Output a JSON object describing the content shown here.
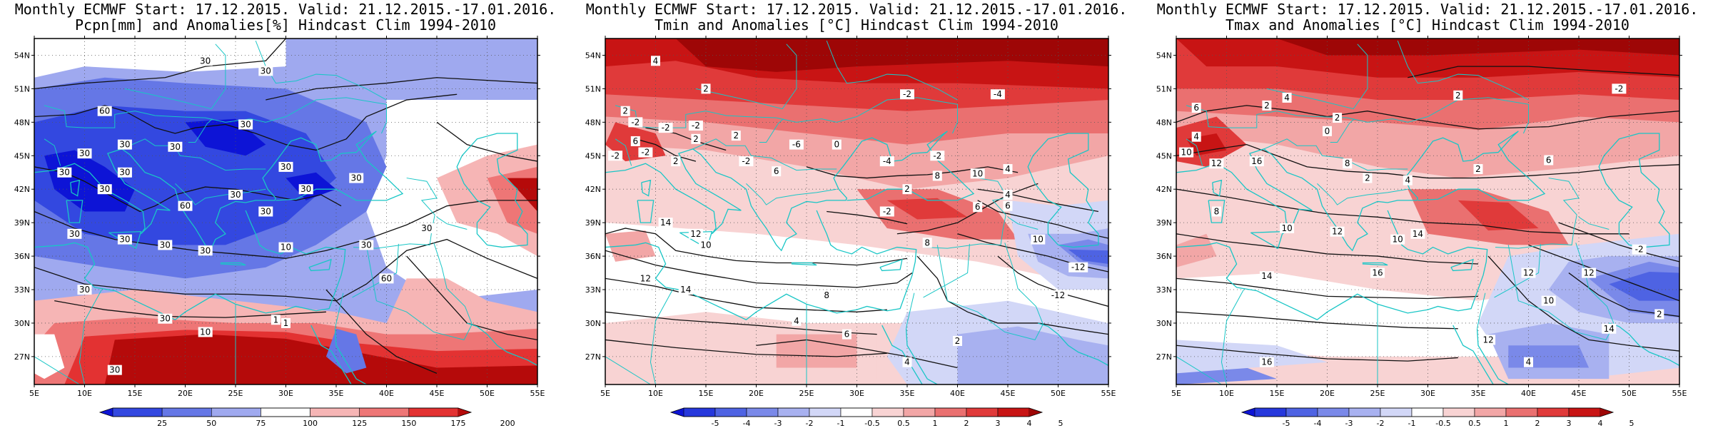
{
  "panels": [
    {
      "title_line1": "Monthly ECMWF Start: 17.12.2015. Valid: 21.12.2015.-17.01.2016.",
      "title_line2": "Pcpn[mm] and Anomalies[%] Hindcast Clim 1994-2010",
      "x_ticks": [
        "5E",
        "10E",
        "15E",
        "20E",
        "25E",
        "30E",
        "35E",
        "40E",
        "45E",
        "50E",
        "55E"
      ],
      "y_ticks": [
        "54N",
        "51N",
        "48N",
        "45N",
        "42N",
        "39N",
        "36N",
        "33N",
        "30N",
        "27N"
      ],
      "colorbar_labels": [
        "25",
        "50",
        "75",
        "100",
        "125",
        "150",
        "175",
        "200"
      ],
      "colorbar_colors": [
        "#0d14d6",
        "#3348e0",
        "#6577e6",
        "#9fa9ef",
        "#ffffff",
        "#f6b5b5",
        "#ee7676",
        "#e33232",
        "#b50a0a"
      ],
      "contour_labels": [
        "30",
        "30",
        "60",
        "30",
        "30",
        "30",
        "30",
        "30",
        "30",
        "30",
        "30",
        "30",
        "30",
        "30",
        "60",
        "30",
        "30",
        "30",
        "30",
        "30",
        "10",
        "30",
        "30",
        "60",
        "30",
        "30",
        "1",
        "1",
        "10",
        "30"
      ]
    },
    {
      "title_line1": "Monthly ECMWF Start: 17.12.2015. Valid: 21.12.2015.-17.01.2016.",
      "title_line2": "Tmin and Anomalies [°C] Hindcast Clim 1994-2010",
      "x_ticks": [
        "5E",
        "10E",
        "15E",
        "20E",
        "25E",
        "30E",
        "35E",
        "40E",
        "45E",
        "50E",
        "55E"
      ],
      "y_ticks": [
        "54N",
        "51N",
        "48N",
        "45N",
        "42N",
        "39N",
        "36N",
        "33N",
        "30N",
        "27N"
      ],
      "colorbar_labels": [
        "-5",
        "-4",
        "-3",
        "-2",
        "-1",
        "-0.5",
        "0.5",
        "1",
        "2",
        "3",
        "4",
        "5"
      ],
      "colorbar_colors": [
        "#0d14d6",
        "#2638dc",
        "#4e63e3",
        "#7a89e9",
        "#a8b1f0",
        "#d2d7f7",
        "#ffffff",
        "#f8d3d3",
        "#f2a6a6",
        "#ea7070",
        "#e03a3a",
        "#c81414",
        "#9e0606"
      ],
      "contour_labels": [
        "4",
        "2",
        "-2",
        "2",
        "-4",
        "-2",
        "-2",
        "6",
        "-2",
        "2",
        "-6",
        "-2",
        "-2",
        "2",
        "2",
        "-2",
        "0",
        "-4",
        "-2",
        "6",
        "8",
        "10",
        "4",
        "6",
        "-2",
        "2",
        "4",
        "6",
        "14",
        "12",
        "10",
        "8",
        "10",
        "-12",
        "-12",
        "14",
        "12",
        "8",
        "4",
        "6",
        "2",
        "4"
      ]
    },
    {
      "title_line1": "Monthly ECMWF Start: 17.12.2015. Valid: 21.12.2015.-17.01.2016.",
      "title_line2": "Tmax and Anomalies [°C] Hindcast Clim 1994-2010",
      "x_ticks": [
        "5E",
        "10E",
        "15E",
        "20E",
        "25E",
        "30E",
        "35E",
        "40E",
        "45E",
        "50E",
        "55E"
      ],
      "y_ticks": [
        "54N",
        "51N",
        "48N",
        "45N",
        "42N",
        "39N",
        "36N",
        "33N",
        "30N",
        "27N"
      ],
      "colorbar_labels": [
        "-5",
        "-4",
        "-3",
        "-2",
        "-1",
        "-0.5",
        "0.5",
        "1",
        "2",
        "3",
        "4",
        "5"
      ],
      "colorbar_colors": [
        "#0d14d6",
        "#2638dc",
        "#4e63e3",
        "#7a89e9",
        "#a8b1f0",
        "#d2d7f7",
        "#ffffff",
        "#f8d3d3",
        "#f2a6a6",
        "#ea7070",
        "#e03a3a",
        "#c81414",
        "#9e0606"
      ],
      "contour_labels": [
        "-2",
        "6",
        "4",
        "2",
        "2",
        "0",
        "2",
        "4",
        "10",
        "12",
        "16",
        "8",
        "2",
        "4",
        "2",
        "6",
        "8",
        "10",
        "12",
        "14",
        "10",
        "16",
        "14",
        "12",
        "-2",
        "12",
        "10",
        "14",
        "16",
        "12",
        "4",
        "2"
      ]
    }
  ],
  "chart_data": [
    {
      "type": "heatmap",
      "title": "Monthly ECMWF Start: 17.12.2015. Valid: 21.12.2015.-17.01.2016. Pcpn[mm] and Anomalies[%] Hindcast Clim 1994-2010",
      "xlim": [
        5,
        55
      ],
      "ylim": [
        24.5,
        55.5
      ],
      "x_ticks": [
        "5E",
        "10E",
        "15E",
        "20E",
        "25E",
        "30E",
        "35E",
        "40E",
        "45E",
        "50E",
        "55E"
      ],
      "y_ticks": [
        "54N",
        "51N",
        "48N",
        "45N",
        "42N",
        "39N",
        "36N",
        "33N",
        "30N",
        "27N"
      ],
      "colorbar": [
        25,
        50,
        75,
        100,
        125,
        150,
        175,
        200
      ],
      "grid": true
    },
    {
      "type": "heatmap",
      "title": "Monthly ECMWF Start: 17.12.2015. Valid: 21.12.2015.-17.01.2016. Tmin and Anomalies [°C] Hindcast Clim 1994-2010",
      "xlim": [
        5,
        55
      ],
      "ylim": [
        24.5,
        55.5
      ],
      "x_ticks": [
        "5E",
        "10E",
        "15E",
        "20E",
        "25E",
        "30E",
        "35E",
        "40E",
        "45E",
        "50E",
        "55E"
      ],
      "y_ticks": [
        "54N",
        "51N",
        "48N",
        "45N",
        "42N",
        "39N",
        "36N",
        "33N",
        "30N",
        "27N"
      ],
      "colorbar": [
        -5,
        -4,
        -3,
        -2,
        -1,
        -0.5,
        0.5,
        1,
        2,
        3,
        4,
        5
      ],
      "grid": true
    },
    {
      "type": "heatmap",
      "title": "Monthly ECMWF Start: 17.12.2015. Valid: 21.12.2015.-17.01.2016. Tmax and Anomalies [°C] Hindcast Clim 1994-2010",
      "xlim": [
        5,
        55
      ],
      "ylim": [
        24.5,
        55.5
      ],
      "x_ticks": [
        "5E",
        "10E",
        "15E",
        "20E",
        "25E",
        "30E",
        "35E",
        "40E",
        "45E",
        "50E",
        "55E"
      ],
      "y_ticks": [
        "54N",
        "51N",
        "48N",
        "45N",
        "42N",
        "39N",
        "36N",
        "33N",
        "30N",
        "27N"
      ],
      "colorbar": [
        -5,
        -4,
        -3,
        -2,
        -1,
        -0.5,
        0.5,
        1,
        2,
        3,
        4,
        5
      ],
      "grid": true
    }
  ]
}
